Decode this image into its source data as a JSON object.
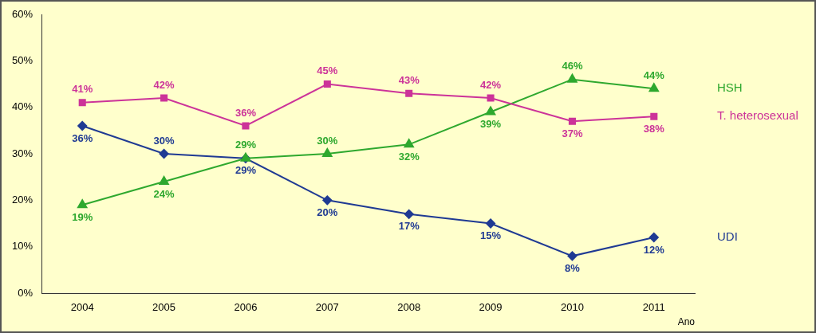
{
  "chart_data": {
    "type": "line",
    "x_label": "Ano",
    "categories": [
      "2004",
      "2005",
      "2006",
      "2007",
      "2008",
      "2009",
      "2010",
      "2011"
    ],
    "ylim": [
      0,
      60
    ],
    "yticks": [
      {
        "value": 0,
        "label": "0%"
      },
      {
        "value": 10,
        "label": "10%"
      },
      {
        "value": 20,
        "label": "20%"
      },
      {
        "value": 30,
        "label": "30%"
      },
      {
        "value": 40,
        "label": "40%"
      },
      {
        "value": 50,
        "label": "50%"
      },
      {
        "value": 60,
        "label": "60%"
      }
    ],
    "grid": false,
    "data_labels": true,
    "series": [
      {
        "name": "T. heterosexual",
        "color": "#cc3399",
        "marker": "square",
        "values": [
          41,
          42,
          36,
          45,
          43,
          42,
          37,
          38
        ],
        "value_labels": [
          "41%",
          "42%",
          "36%",
          "45%",
          "43%",
          "42%",
          "37%",
          "38%"
        ]
      },
      {
        "name": "HSH",
        "color": "#2ea82e",
        "marker": "triangle",
        "values": [
          19,
          24,
          29,
          30,
          32,
          39,
          46,
          44
        ],
        "value_labels": [
          "19%",
          "24%",
          "29%",
          "30%",
          "32%",
          "39%",
          "46%",
          "44%"
        ]
      },
      {
        "name": "UDI",
        "color": "#1f3a93",
        "marker": "diamond",
        "values": [
          36,
          30,
          29,
          20,
          17,
          15,
          8,
          12
        ],
        "value_labels": [
          "36%",
          "30%",
          "29%",
          "20%",
          "17%",
          "15%",
          "8%",
          "12%"
        ]
      }
    ]
  }
}
